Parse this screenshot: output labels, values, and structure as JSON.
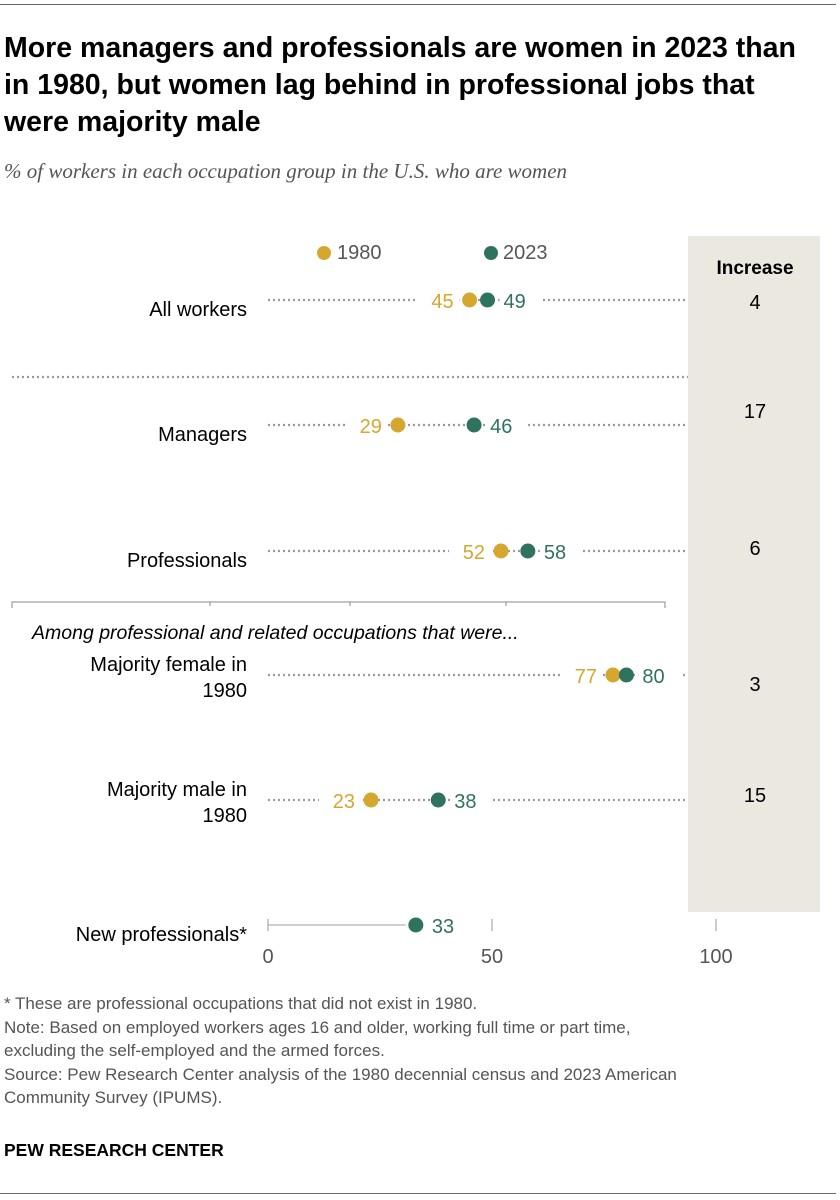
{
  "title": "More managers and professionals are women in 2023 than in 1980, but women lag behind in professional jobs that were majority male",
  "subtitle": "% of workers in each occupation group in the U.S. who are women",
  "legend": [
    {
      "name": "1980",
      "color": "#d5a72f"
    },
    {
      "name": "2023",
      "color": "#2f7260"
    }
  ],
  "increase_header": "Increase",
  "section_heading": "Among professional and related occupations that were...",
  "chart_data": {
    "type": "dot",
    "xlim": [
      0,
      100
    ],
    "xticks": [
      0,
      50,
      100
    ],
    "series_names": [
      "1980",
      "2023"
    ],
    "rows": [
      {
        "label_lines": [
          "All workers"
        ],
        "v1980": 45,
        "v2023": 49,
        "increase": "4"
      },
      {
        "label_lines": [
          "Managers"
        ],
        "v1980": 29,
        "v2023": 46,
        "increase": "17"
      },
      {
        "label_lines": [
          "Professionals"
        ],
        "v1980": 52,
        "v2023": 58,
        "increase": "6"
      },
      {
        "label_lines": [
          "Majority female in",
          "1980"
        ],
        "v1980": 77,
        "v2023": 80,
        "increase": "3"
      },
      {
        "label_lines": [
          "Majority male in",
          "1980"
        ],
        "v1980": 23,
        "v2023": 38,
        "increase": "15"
      },
      {
        "label_lines": [
          "New professionals*"
        ],
        "v1980": null,
        "v2023": 33,
        "increase": ""
      }
    ]
  },
  "footnotes": [
    "* These are professional occupations that did not exist in 1980.",
    "Note: Based on employed workers ages 16 and older, working full time or part time,",
    "excluding the self-employed and the armed forces.",
    "Source: Pew Research Center analysis of the 1980 decennial census and 2023 American",
    "Community Survey (IPUMS)."
  ],
  "brand": "PEW RESEARCH CENTER"
}
